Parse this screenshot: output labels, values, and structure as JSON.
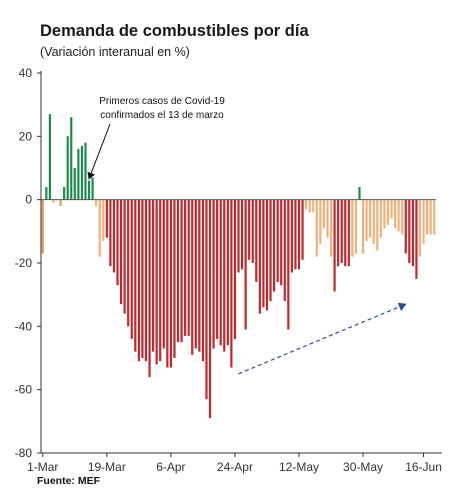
{
  "title": "Demanda de combustibles por día",
  "subtitle": "(Variación interanual en %)",
  "source": "Fuente: MEF",
  "colors": {
    "positive": "#1e8b4f",
    "mild_negative": "#f0b27a",
    "strong_negative": "#c0282d",
    "early_negative": "#e89a4c",
    "trend_arrow": "#2e4f8f"
  },
  "chart_data": {
    "type": "bar",
    "title": "Demanda de combustibles por día",
    "subtitle": "(Variación interanual en %)",
    "xlabel": "",
    "ylabel": "",
    "ylim": [
      -80,
      40
    ],
    "yticks": [
      40,
      20,
      0,
      -20,
      -40,
      -60,
      -80
    ],
    "xtick_labels": [
      "1-Mar",
      "19-Mar",
      "6-Apr",
      "24-Apr",
      "12-May",
      "30-May",
      "16-Jun"
    ],
    "xtick_day_index": [
      0,
      18,
      36,
      54,
      72,
      90,
      107
    ],
    "start_date": "1-Mar",
    "values": [
      -17,
      4,
      27,
      -1,
      0,
      -2,
      4,
      20,
      26,
      10,
      16,
      17,
      18,
      6,
      7,
      -2,
      -18,
      -13,
      -12,
      -21,
      -23,
      -27,
      -33,
      -36,
      -40,
      -44,
      -48,
      -51,
      -50,
      -51,
      -56,
      -48,
      -52,
      -51,
      -47,
      -53,
      -53,
      -50,
      -45,
      -45,
      -43,
      -43,
      -49,
      -47,
      -48,
      -51,
      -63,
      -69,
      -47,
      -44,
      -46,
      -48,
      -46,
      -53,
      -44,
      -23,
      -22,
      -41,
      -19,
      -20,
      -26,
      -36,
      -34,
      -35,
      -32,
      -29,
      -26,
      -27,
      -32,
      -41,
      -23,
      -22,
      -22,
      -19,
      -3,
      -4,
      -4,
      -18,
      -14,
      -9,
      -12,
      -18,
      -29,
      -21,
      -20,
      -21,
      -21,
      -18,
      -17,
      4,
      -17,
      -13,
      -12,
      -14,
      -16,
      -12,
      -9,
      -8,
      -6,
      -9,
      -10,
      -11,
      -17,
      -20,
      -21,
      -25,
      -18,
      -14,
      -11,
      -11,
      -11
    ],
    "bar_colors": [
      "early_negative",
      "positive",
      "positive",
      "mild_negative",
      "mild_negative",
      "early_negative",
      "positive",
      "positive",
      "positive",
      "positive",
      "positive",
      "positive",
      "positive",
      "positive",
      "positive",
      "mild_negative",
      "mild_negative",
      "mild_negative",
      "strong_negative",
      "strong_negative",
      "strong_negative",
      "strong_negative",
      "strong_negative",
      "strong_negative",
      "strong_negative",
      "strong_negative",
      "strong_negative",
      "strong_negative",
      "strong_negative",
      "strong_negative",
      "strong_negative",
      "strong_negative",
      "strong_negative",
      "strong_negative",
      "strong_negative",
      "strong_negative",
      "strong_negative",
      "strong_negative",
      "strong_negative",
      "strong_negative",
      "strong_negative",
      "strong_negative",
      "strong_negative",
      "strong_negative",
      "strong_negative",
      "strong_negative",
      "strong_negative",
      "strong_negative",
      "strong_negative",
      "strong_negative",
      "strong_negative",
      "strong_negative",
      "strong_negative",
      "strong_negative",
      "strong_negative",
      "strong_negative",
      "strong_negative",
      "strong_negative",
      "strong_negative",
      "strong_negative",
      "strong_negative",
      "strong_negative",
      "strong_negative",
      "strong_negative",
      "strong_negative",
      "strong_negative",
      "strong_negative",
      "strong_negative",
      "strong_negative",
      "strong_negative",
      "strong_negative",
      "strong_negative",
      "strong_negative",
      "strong_negative",
      "mild_negative",
      "mild_negative",
      "mild_negative",
      "mild_negative",
      "mild_negative",
      "mild_negative",
      "mild_negative",
      "mild_negative",
      "strong_negative",
      "strong_negative",
      "strong_negative",
      "strong_negative",
      "strong_negative",
      "mild_negative",
      "mild_negative",
      "positive",
      "mild_negative",
      "mild_negative",
      "mild_negative",
      "mild_negative",
      "mild_negative",
      "mild_negative",
      "mild_negative",
      "mild_negative",
      "mild_negative",
      "mild_negative",
      "mild_negative",
      "mild_negative",
      "strong_negative",
      "strong_negative",
      "strong_negative",
      "strong_negative",
      "mild_negative",
      "mild_negative",
      "mild_negative",
      "mild_negative",
      "mild_negative"
    ],
    "grid": false,
    "legend": "none",
    "annotation": {
      "lines": [
        "Primeros casos de Covid-19",
        "confirmados el 13 de marzo"
      ],
      "points_to_day_index": 13,
      "points_to_value": 6
    },
    "trend_arrow": {
      "from": {
        "day_index": 55,
        "value": -55
      },
      "to": {
        "day_index": 102,
        "value": -33
      }
    }
  }
}
